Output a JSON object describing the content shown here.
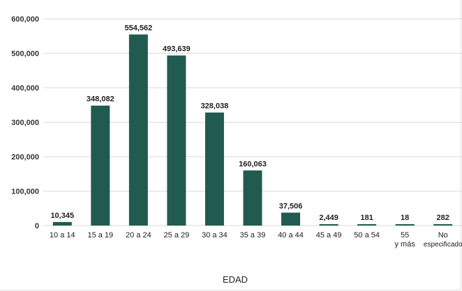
{
  "chart_data": {
    "type": "bar",
    "categories": [
      [
        "10 a 14"
      ],
      [
        "15 a 19"
      ],
      [
        "20 a 24"
      ],
      [
        "25 a 29"
      ],
      [
        "30 a 34"
      ],
      [
        "35 a 39"
      ],
      [
        "40 a 44"
      ],
      [
        "45 a 49"
      ],
      [
        "50 a 54"
      ],
      [
        "55",
        "y más"
      ],
      [
        "No",
        "especificado"
      ]
    ],
    "values": [
      10345,
      348082,
      554562,
      493639,
      328038,
      160063,
      37506,
      2449,
      181,
      18,
      282
    ],
    "value_labels": [
      "10,345",
      "348,082",
      "554,562",
      "493,639",
      "328,038",
      "160,063",
      "37,506",
      "2,449",
      "181",
      "18",
      "282"
    ],
    "xlabel": "EDAD",
    "ylabel": "",
    "ylim": [
      0,
      600000
    ],
    "yticks": [
      0,
      100000,
      200000,
      300000,
      400000,
      500000,
      600000
    ],
    "ytick_labels": [
      "0",
      "100,000",
      "200,000",
      "300,000",
      "400,000",
      "500,000",
      "600,000"
    ],
    "grid": true,
    "legend": "none",
    "colors": {
      "bar": "#215b4f",
      "grid": "#d9d9d9",
      "text": "#222222"
    }
  }
}
